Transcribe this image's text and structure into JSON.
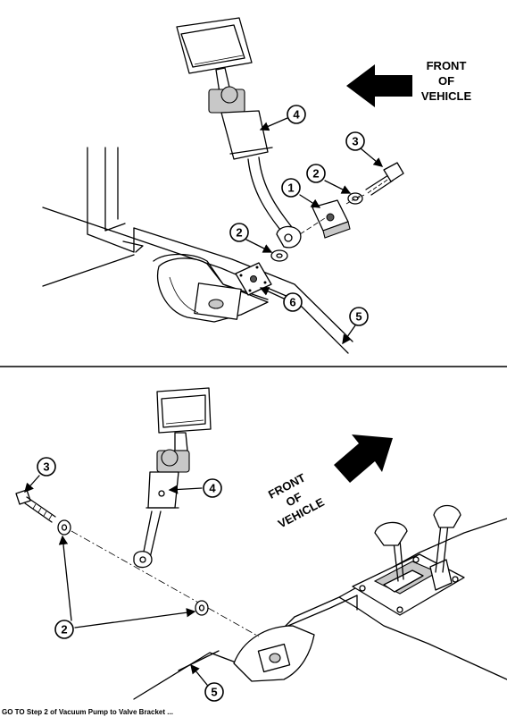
{
  "top_view": {
    "direction_label": [
      "FRONT",
      "OF",
      "VEHICLE"
    ],
    "callouts": [
      "1",
      "2",
      "2",
      "3",
      "4",
      "5",
      "6"
    ]
  },
  "bottom_view": {
    "direction_label": [
      "FRONT",
      "OF",
      "VEHICLE"
    ],
    "callouts": [
      "2",
      "3",
      "4",
      "5"
    ]
  },
  "footer_caption": "GO TO Step 2 of Vacuum Pump to Valve Bracket ..."
}
